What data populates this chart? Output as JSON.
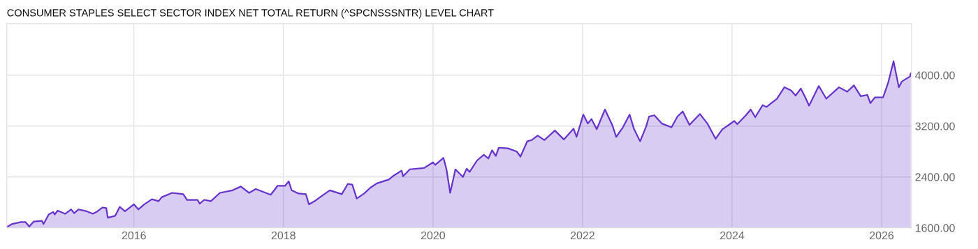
{
  "chart_data": {
    "type": "area",
    "title": "CONSUMER STAPLES SELECT SECTOR INDEX NET TOTAL RETURN (^SPCNSSSNTR) LEVEL CHART",
    "x": [
      2014.31,
      2014.37,
      2014.49,
      2014.55,
      2014.6,
      2014.66,
      2014.77,
      2014.79,
      2014.86,
      2014.92,
      2014.94,
      2014.98,
      2015.08,
      2015.16,
      2015.2,
      2015.26,
      2015.37,
      2015.45,
      2015.5,
      2015.58,
      2015.63,
      2015.65,
      2015.75,
      2015.81,
      2015.88,
      2016.0,
      2016.06,
      2016.14,
      2016.24,
      2016.33,
      2016.37,
      2016.51,
      2016.66,
      2016.71,
      2016.85,
      2016.88,
      2016.94,
      2017.03,
      2017.15,
      2017.32,
      2017.43,
      2017.54,
      2017.63,
      2017.83,
      2017.92,
      2018.02,
      2018.07,
      2018.11,
      2018.2,
      2018.3,
      2018.34,
      2018.43,
      2018.5,
      2018.62,
      2018.78,
      2018.86,
      2018.92,
      2018.98,
      2019.08,
      2019.16,
      2019.25,
      2019.41,
      2019.46,
      2019.58,
      2019.6,
      2019.69,
      2019.88,
      2020.0,
      2020.03,
      2020.14,
      2020.18,
      2020.23,
      2020.3,
      2020.4,
      2020.45,
      2020.49,
      2020.59,
      2020.68,
      2020.74,
      2020.79,
      2020.84,
      2020.88,
      2021.0,
      2021.12,
      2021.17,
      2021.26,
      2021.32,
      2021.4,
      2021.49,
      2021.63,
      2021.75,
      2021.88,
      2021.92,
      2022.01,
      2022.07,
      2022.12,
      2022.19,
      2022.3,
      2022.4,
      2022.45,
      2022.54,
      2022.63,
      2022.69,
      2022.77,
      2022.85,
      2022.89,
      2022.96,
      2023.06,
      2023.19,
      2023.27,
      2023.34,
      2023.43,
      2023.57,
      2023.67,
      2023.78,
      2023.87,
      2023.97,
      2024.03,
      2024.07,
      2024.17,
      2024.25,
      2024.31,
      2024.41,
      2024.46,
      2024.6,
      2024.7,
      2024.79,
      2024.85,
      2024.92,
      2024.98,
      2025.03,
      2025.16,
      2025.26,
      2025.43,
      2025.54,
      2025.63,
      2025.72,
      2025.81,
      2025.85,
      2025.91,
      2026.02,
      2026.09,
      2026.16,
      2026.23,
      2026.27,
      2026.38,
      2026.39
    ],
    "series": [
      {
        "color": "#6633cc",
        "values": [
          1620,
          1660,
          1690,
          1690,
          1620,
          1700,
          1710,
          1660,
          1810,
          1850,
          1810,
          1870,
          1820,
          1890,
          1830,
          1890,
          1860,
          1820,
          1850,
          1920,
          1910,
          1760,
          1790,
          1930,
          1860,
          1970,
          1890,
          1970,
          2050,
          2020,
          2080,
          2150,
          2130,
          2040,
          2040,
          1980,
          2040,
          2020,
          2150,
          2190,
          2250,
          2150,
          2210,
          2120,
          2260,
          2260,
          2330,
          2190,
          2140,
          2130,
          1970,
          2030,
          2090,
          2190,
          2130,
          2290,
          2280,
          2060,
          2140,
          2230,
          2300,
          2360,
          2410,
          2500,
          2410,
          2520,
          2540,
          2630,
          2590,
          2700,
          2520,
          2150,
          2520,
          2400,
          2530,
          2480,
          2660,
          2750,
          2690,
          2820,
          2730,
          2860,
          2850,
          2800,
          2720,
          2960,
          2980,
          3050,
          2980,
          3130,
          2990,
          3160,
          3030,
          3380,
          3240,
          3310,
          3150,
          3460,
          3210,
          3030,
          3180,
          3380,
          3150,
          2960,
          3190,
          3350,
          3370,
          3240,
          3180,
          3350,
          3430,
          3220,
          3390,
          3240,
          3000,
          3150,
          3230,
          3280,
          3230,
          3350,
          3460,
          3340,
          3530,
          3500,
          3630,
          3810,
          3760,
          3680,
          3790,
          3650,
          3520,
          3830,
          3630,
          3810,
          3740,
          3840,
          3670,
          3690,
          3560,
          3650,
          3650,
          3890,
          4220,
          3810,
          3900,
          3980,
          4030
        ]
      }
    ],
    "xlim": [
      2014.3,
      2026.4
    ],
    "xticks": [
      2016,
      2018,
      2020,
      2022,
      2024,
      2026
    ],
    "ylim": [
      1600,
      4810
    ],
    "yticks": [
      {
        "value": 1600,
        "label": "1600.00"
      },
      {
        "value": 2400,
        "label": "2400.00"
      },
      {
        "value": 3200,
        "label": "3200.00"
      },
      {
        "value": 4000,
        "label": "4000.00"
      }
    ],
    "grid": true
  }
}
